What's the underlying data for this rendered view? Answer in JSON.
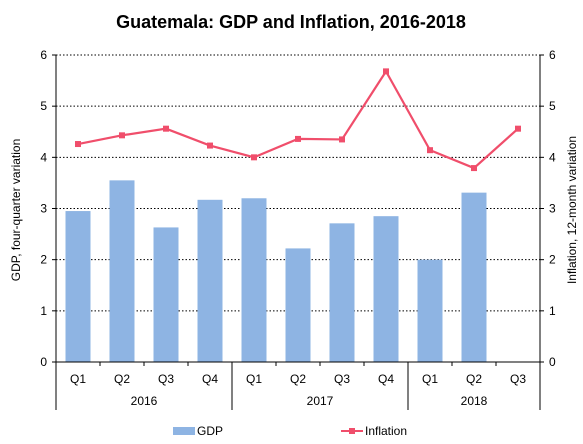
{
  "chart_data": {
    "type": "bar",
    "title": "Guatemala: GDP and Inflation, 2016-2018",
    "ylabel_left": "GDP, four-quarter variation",
    "ylabel_right": "Inflation, 12-month variation",
    "ylim": [
      0,
      6
    ],
    "ytick_labels": [
      "0",
      "1",
      "2",
      "3",
      "4",
      "5",
      "6"
    ],
    "grid": "horizontal dotted",
    "legend_position": "bottom",
    "categories": [
      "Q1",
      "Q2",
      "Q3",
      "Q4",
      "Q1",
      "Q2",
      "Q3",
      "Q4",
      "Q1",
      "Q2",
      "Q3"
    ],
    "groups": [
      {
        "label": "2016",
        "count": 4
      },
      {
        "label": "2017",
        "count": 4
      },
      {
        "label": "2018",
        "count": 3
      }
    ],
    "series": [
      {
        "name": "GDP",
        "type": "bar",
        "axis": "left",
        "color": "#8eb4e3",
        "values": [
          2.95,
          3.55,
          2.63,
          3.17,
          3.2,
          2.22,
          2.71,
          2.85,
          2.0,
          3.31,
          null
        ]
      },
      {
        "name": "Inflation",
        "type": "line",
        "axis": "right",
        "color": "#f04e6b",
        "values": [
          4.26,
          4.43,
          4.56,
          4.23,
          4.0,
          4.36,
          4.35,
          5.68,
          4.14,
          3.79,
          4.56
        ]
      }
    ]
  }
}
